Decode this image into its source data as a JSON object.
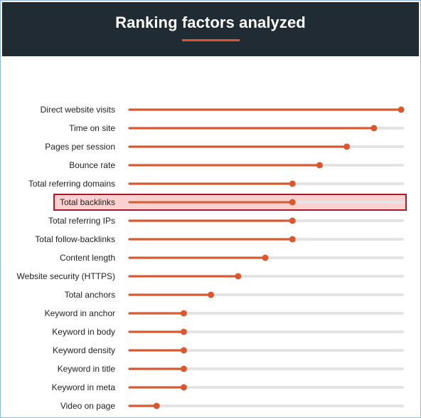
{
  "header": {
    "title": "Ranking factors analyzed"
  },
  "colors": {
    "header_bg": "#202b33",
    "accent": "#d9582d",
    "track": "#e4e4e4",
    "highlight_border": "#b0182a",
    "highlight_fill": "#fcd0d0"
  },
  "chart_data": {
    "type": "bar",
    "style": "lollipop",
    "title": "Ranking factors analyzed",
    "xlabel": "",
    "ylabel": "",
    "grid": false,
    "value_scale": "relative, 0 to 1 (no axis printed)",
    "highlighted_category": "Total backlinks",
    "categories": [
      "Direct website visits",
      "Time on site",
      "Pages per session",
      "Bounce rate",
      "Total referring domains",
      "Total backlinks",
      "Total referring IPs",
      "Total follow-backlinks",
      "Content length",
      "Website security (HTTPS)",
      "Total anchors",
      "Keyword in anchor",
      "Keyword in body",
      "Keyword density",
      "Keyword in title",
      "Keyword in meta",
      "Video on page"
    ],
    "values": [
      1.0,
      0.9,
      0.8,
      0.7,
      0.6,
      0.6,
      0.6,
      0.6,
      0.5,
      0.4,
      0.3,
      0.2,
      0.2,
      0.2,
      0.2,
      0.2,
      0.1
    ]
  }
}
